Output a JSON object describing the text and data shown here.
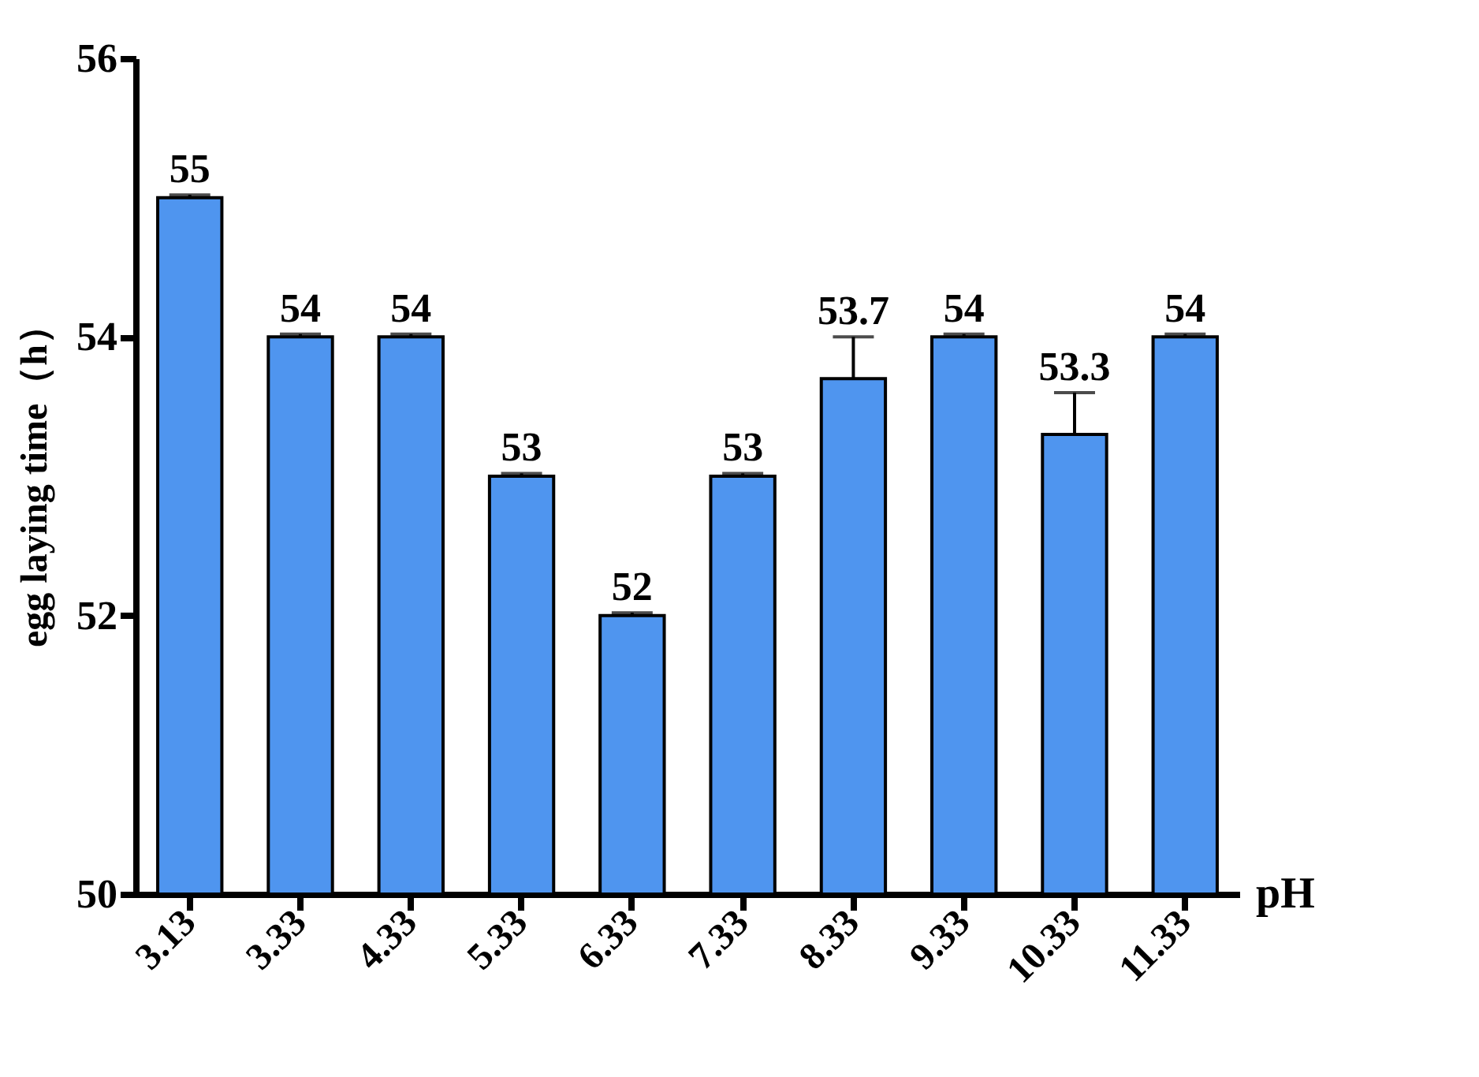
{
  "chart_data": {
    "type": "bar",
    "xlabel": "pH",
    "ylabel": "egg laying time（h）",
    "categories": [
      "3.13",
      "3.33",
      "4.33",
      "5.33",
      "6.33",
      "7.33",
      "8.33",
      "9.33",
      "10.33",
      "11.33"
    ],
    "values": [
      55,
      54,
      54,
      53,
      52,
      53,
      53.7,
      54,
      53.3,
      54
    ],
    "errors": [
      0.02,
      0.02,
      0.02,
      0.02,
      0.02,
      0.02,
      0.3,
      0.02,
      0.3,
      0.02
    ],
    "color": "#4f95ef",
    "data_labels": true,
    "ylim": [
      50,
      56
    ],
    "yticks": [
      50,
      52,
      54,
      56
    ],
    "grid": false
  }
}
